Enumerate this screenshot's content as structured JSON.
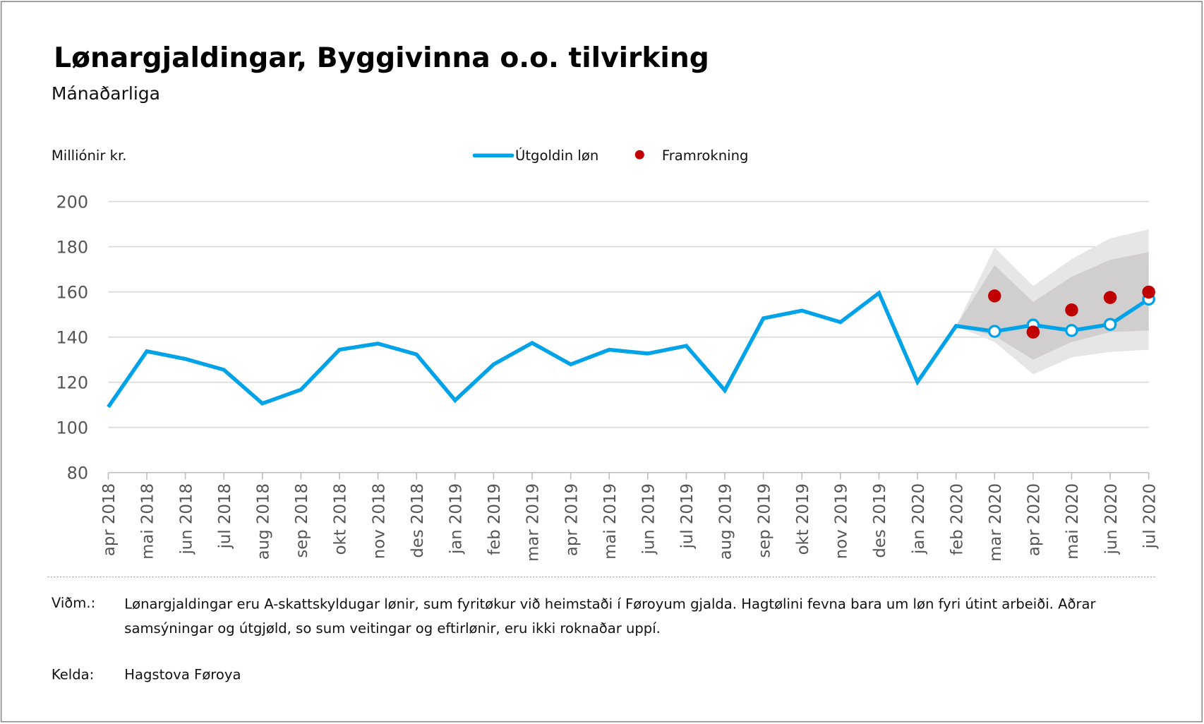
{
  "title": "Lønargjaldingar, Byggivinna o.o. tilvirking",
  "subtitle": "Mánaðarliga",
  "footnote_label": "Viðm.:",
  "footnote_lines": [
    "Lønargjaldingar eru A-skattskyldugar lønir, sum fyritøkur við heimstaði í Føroyum gjalda. Hagtølini fevna bara um løn fyri útint arbeiði. Aðrar",
    "samsýningar og útgjøld, so sum veitingar og eftirlønir, eru ikki roknaðar uppí."
  ],
  "source_label": "Kelda:",
  "source": "Hagstova Føroya",
  "chart_data": {
    "type": "line",
    "ylabel": "Milliónir kr.",
    "ylim": [
      80,
      200
    ],
    "yticks": [
      80,
      100,
      120,
      140,
      160,
      180,
      200
    ],
    "grid": true,
    "legend_placement": "top-center",
    "categories": [
      "apr 2018",
      "mai 2018",
      "jun 2018",
      "jul 2018",
      "aug 2018",
      "sep 2018",
      "okt 2018",
      "nov 2018",
      "des 2018",
      "jan 2019",
      "feb 2019",
      "mar 2019",
      "apr 2019",
      "mai 2019",
      "jun 2019",
      "jul 2019",
      "aug 2019",
      "sep 2019",
      "okt 2019",
      "nov 2019",
      "des 2019",
      "jan 2020",
      "feb 2020",
      "mar 2020",
      "apr 2020",
      "mai 2020",
      "jun 2020",
      "jul 2020"
    ],
    "series": [
      {
        "name": "Útgoldin løn",
        "type": "line",
        "color": "#00a3e8",
        "values": [
          109,
          133.7,
          130.3,
          125.5,
          110.6,
          116.7,
          134.4,
          137.1,
          132.3,
          112,
          127.9,
          137.4,
          127.9,
          134.4,
          132.7,
          136.1,
          116.4,
          148.3,
          151.7,
          146.6,
          159.5,
          120.1,
          144.9,
          142.5,
          145.3,
          142.9,
          145.6,
          156.8
        ]
      },
      {
        "name": "Framrokning",
        "type": "scatter",
        "color": "#c00000",
        "categories": [
          "mar 2020",
          "apr 2020",
          "mai 2020",
          "jun 2020",
          "jul 2020"
        ],
        "values": [
          158.2,
          142.2,
          152,
          157.5,
          159.9
        ]
      }
    ],
    "bands": [
      {
        "color": "#e6e6e6",
        "categories": [
          "feb 2020",
          "mar 2020",
          "apr 2020",
          "mai 2020",
          "jun 2020",
          "jul 2020"
        ],
        "upper": [
          144.9,
          179.6,
          162.6,
          174.5,
          183.7,
          187.7
        ],
        "lower": [
          144.9,
          137.8,
          123.5,
          131,
          133.4,
          134.4
        ]
      },
      {
        "color": "#d0cece",
        "categories": [
          "feb 2020",
          "mar 2020",
          "apr 2020",
          "mai 2020",
          "jun 2020",
          "jul 2020"
        ],
        "upper": [
          144.9,
          171.8,
          155.5,
          166.7,
          174.2,
          177.6
        ],
        "lower": [
          144.9,
          140.5,
          130,
          137.8,
          142.2,
          142.9
        ]
      }
    ],
    "open_markers": [
      "mar 2020",
      "apr 2020",
      "mai 2020",
      "jun 2020",
      "jul 2020"
    ]
  }
}
